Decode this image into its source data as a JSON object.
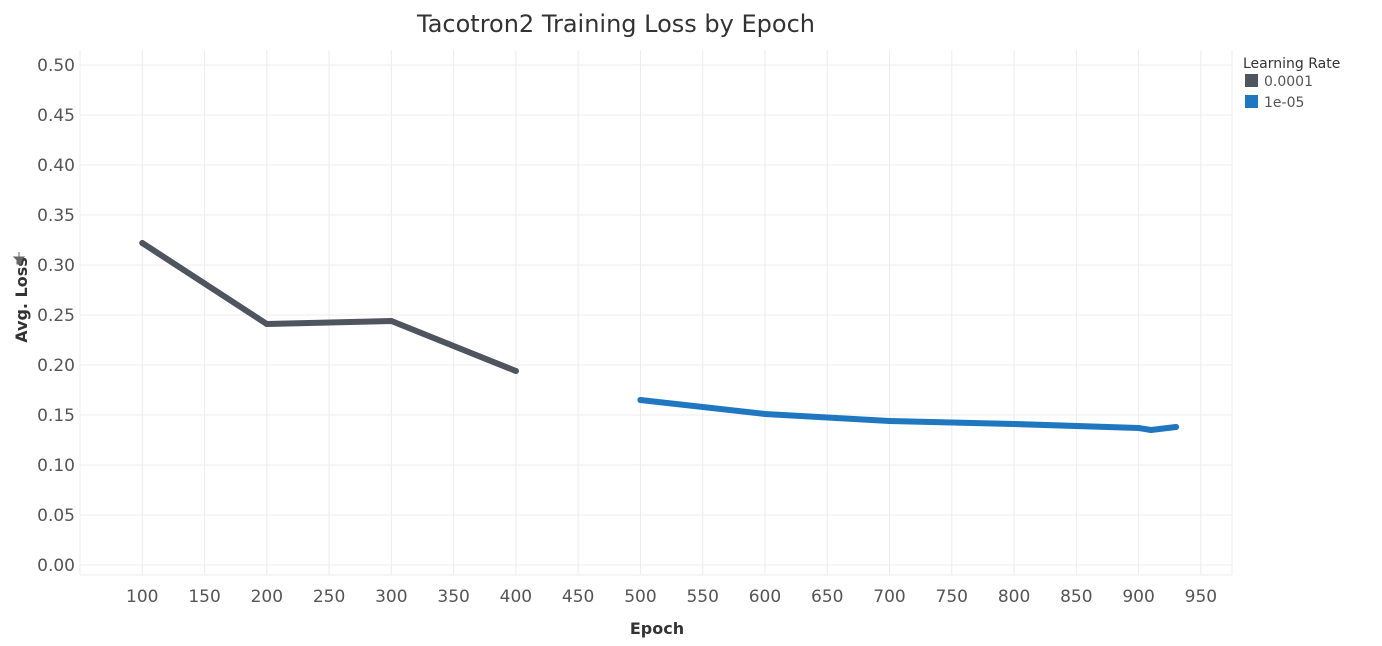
{
  "chart_data": {
    "type": "line",
    "title": "Tacotron2 Training Loss by Epoch",
    "xlabel": "Epoch",
    "ylabel": "Avg. Loss",
    "xlim": [
      50,
      975
    ],
    "ylim": [
      -0.01,
      0.515
    ],
    "x_ticks": [
      "100",
      "150",
      "200",
      "250",
      "300",
      "350",
      "400",
      "450",
      "500",
      "550",
      "600",
      "650",
      "700",
      "750",
      "800",
      "850",
      "900",
      "950"
    ],
    "y_ticks": [
      "0.00",
      "0.05",
      "0.10",
      "0.15",
      "0.20",
      "0.25",
      "0.30",
      "0.35",
      "0.40",
      "0.45",
      "0.50"
    ],
    "grid": true,
    "legend": {
      "title": "Learning Rate",
      "position": "top-right"
    },
    "series": [
      {
        "name": "0.0001",
        "color": "#4e555f",
        "x": [
          100,
          200,
          300,
          400
        ],
        "y": [
          0.322,
          0.241,
          0.244,
          0.194
        ]
      },
      {
        "name": "1e-05",
        "color": "#1f77c0",
        "x": [
          500,
          600,
          700,
          800,
          900,
          910,
          930
        ],
        "y": [
          0.165,
          0.151,
          0.144,
          0.141,
          0.137,
          0.135,
          0.138
        ]
      }
    ]
  }
}
